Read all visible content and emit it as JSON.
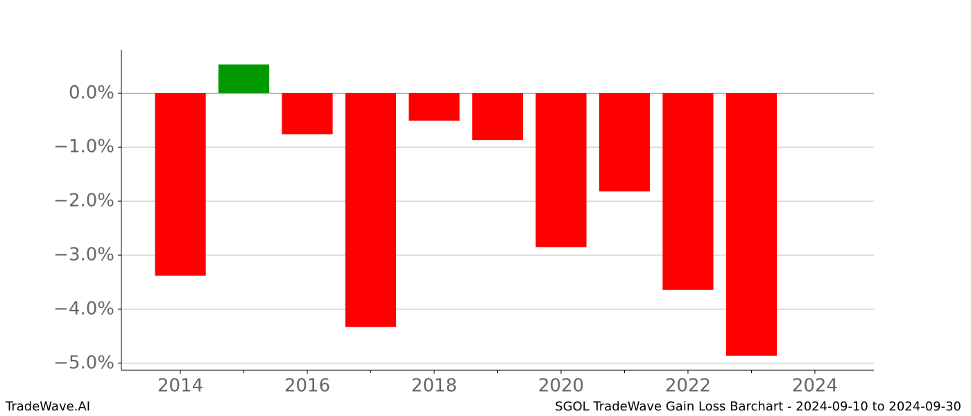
{
  "chart_data": {
    "type": "bar",
    "title": "SGOL TradeWave Gain Loss Barchart - 2024-09-10 to 2024-09-30",
    "brand": "TradeWave.AI",
    "x": [
      2014,
      2015,
      2016,
      2017,
      2018,
      2019,
      2020,
      2021,
      2022,
      2023
    ],
    "values": [
      -3.38,
      0.53,
      -0.76,
      -4.33,
      -0.51,
      -0.87,
      -2.85,
      -1.82,
      -3.64,
      -4.86
    ],
    "colors": [
      "#ff0000",
      "#009900",
      "#ff0000",
      "#ff0000",
      "#ff0000",
      "#ff0000",
      "#ff0000",
      "#ff0000",
      "#ff0000",
      "#ff0000"
    ],
    "xlim": [
      2013.07,
      2024.93
    ],
    "xticks": [
      2014,
      2016,
      2018,
      2020,
      2022,
      2024
    ],
    "xminorticks": [
      2015,
      2017,
      2019,
      2021,
      2023
    ],
    "ylim": [
      -5.13,
      0.8
    ],
    "yticks": [
      {
        "value": 0,
        "label": "0.0%"
      },
      {
        "value": -1,
        "label": "−1.0%"
      },
      {
        "value": -2,
        "label": "−2.0%"
      },
      {
        "value": -3,
        "label": "−3.0%"
      },
      {
        "value": -4,
        "label": "−4.0%"
      },
      {
        "value": -5,
        "label": "−5.0%"
      }
    ],
    "grid": true
  }
}
